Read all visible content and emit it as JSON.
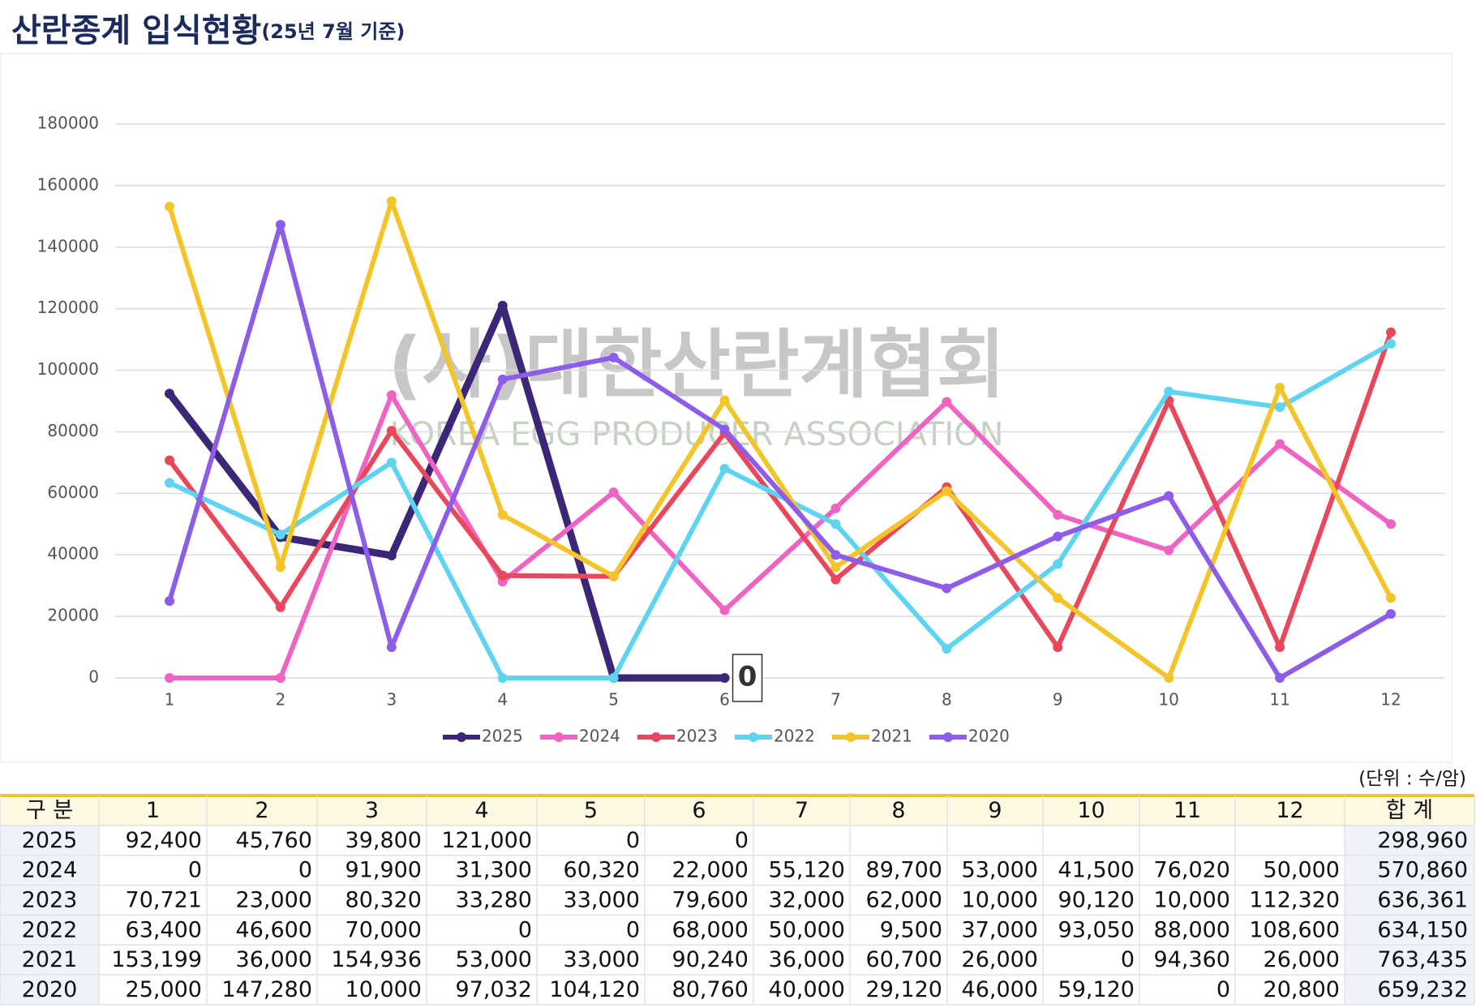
{
  "title": "산란종계 입식현황",
  "subtitle": "(25년 7월 기준)",
  "chart_data": {
    "type": "line",
    "categories": [
      "1",
      "2",
      "3",
      "4",
      "5",
      "6",
      "7",
      "8",
      "9",
      "10",
      "11",
      "12"
    ],
    "ylim": [
      0,
      180000
    ],
    "yticks": [
      0,
      20000,
      40000,
      60000,
      80000,
      100000,
      120000,
      140000,
      160000,
      180000
    ],
    "grid": true,
    "legend": "bottom",
    "watermark": [
      "(사)대한산란계협회",
      "KOREA EGG PRODUCER ASSOCIATION"
    ],
    "annotation": {
      "text": "0",
      "series": 0,
      "index": 5
    },
    "series": [
      {
        "name": "2025",
        "color": "#3b2678",
        "values": [
          92400,
          45760,
          39800,
          121000,
          0,
          0,
          null,
          null,
          null,
          null,
          null,
          null
        ],
        "value_labels": [
          "92,400",
          "45,760",
          "39,800",
          "121,000",
          "0",
          "0",
          null,
          null,
          null,
          null,
          null,
          null
        ]
      },
      {
        "name": "2024",
        "color": "#f063c2",
        "values": [
          0,
          0,
          91900,
          31300,
          60320,
          22000,
          55120,
          89700,
          53000,
          41500,
          76020,
          50000
        ],
        "value_labels": [
          "0",
          "0",
          "91,900",
          "31,300",
          "60,320",
          "22,000",
          "55,120",
          "89,700",
          "53,000",
          "41,500",
          "76,020",
          "50,000"
        ]
      },
      {
        "name": "2023",
        "color": "#e8475c",
        "values": [
          70721,
          23000,
          80320,
          33280,
          33000,
          79600,
          32000,
          62000,
          10000,
          90120,
          10000,
          112320
        ],
        "value_labels": [
          "70,721",
          "23,000",
          "80,320",
          "33,280",
          "33,000",
          "79,600",
          "32,000",
          "62,000",
          "10,000",
          "90,120",
          "10,000",
          "112,320"
        ]
      },
      {
        "name": "2022",
        "color": "#5fd4f0",
        "values": [
          63400,
          46600,
          70000,
          0,
          0,
          68000,
          50000,
          9500,
          37000,
          93050,
          88000,
          108600
        ],
        "value_labels": [
          "63,400",
          "46,600",
          "70,000",
          "0",
          "0",
          "68,000",
          "50,000",
          "9,500",
          "37,000",
          "93,050",
          "88,000",
          "108,600"
        ]
      },
      {
        "name": "2021",
        "color": "#f3c52b",
        "values": [
          153199,
          36000,
          154936,
          53000,
          33000,
          90240,
          36000,
          60700,
          26000,
          0,
          94360,
          26000
        ],
        "value_labels": [
          "153,199",
          "36,000",
          "154,936",
          "53,000",
          "33,000",
          "90,240",
          "36,000",
          "60,700",
          "26,000",
          "0",
          "94,360",
          "26,000"
        ]
      },
      {
        "name": "2020",
        "color": "#8d5de9",
        "values": [
          25000,
          147280,
          10000,
          97032,
          104120,
          80760,
          40000,
          29120,
          46000,
          59120,
          0,
          20800
        ],
        "value_labels": [
          "25,000",
          "147,280",
          "10,000",
          "97,032",
          "104,120",
          "80,760",
          "40,000",
          "29,120",
          "46,000",
          "59,120",
          "0",
          "20,800"
        ]
      }
    ]
  },
  "table": {
    "unit": "(단위 : 수/암)",
    "header_first": "구 분",
    "header_total": "합 계",
    "totals": [
      "298,960",
      "570,860",
      "636,361",
      "634,150",
      "763,435",
      "659,232"
    ]
  }
}
